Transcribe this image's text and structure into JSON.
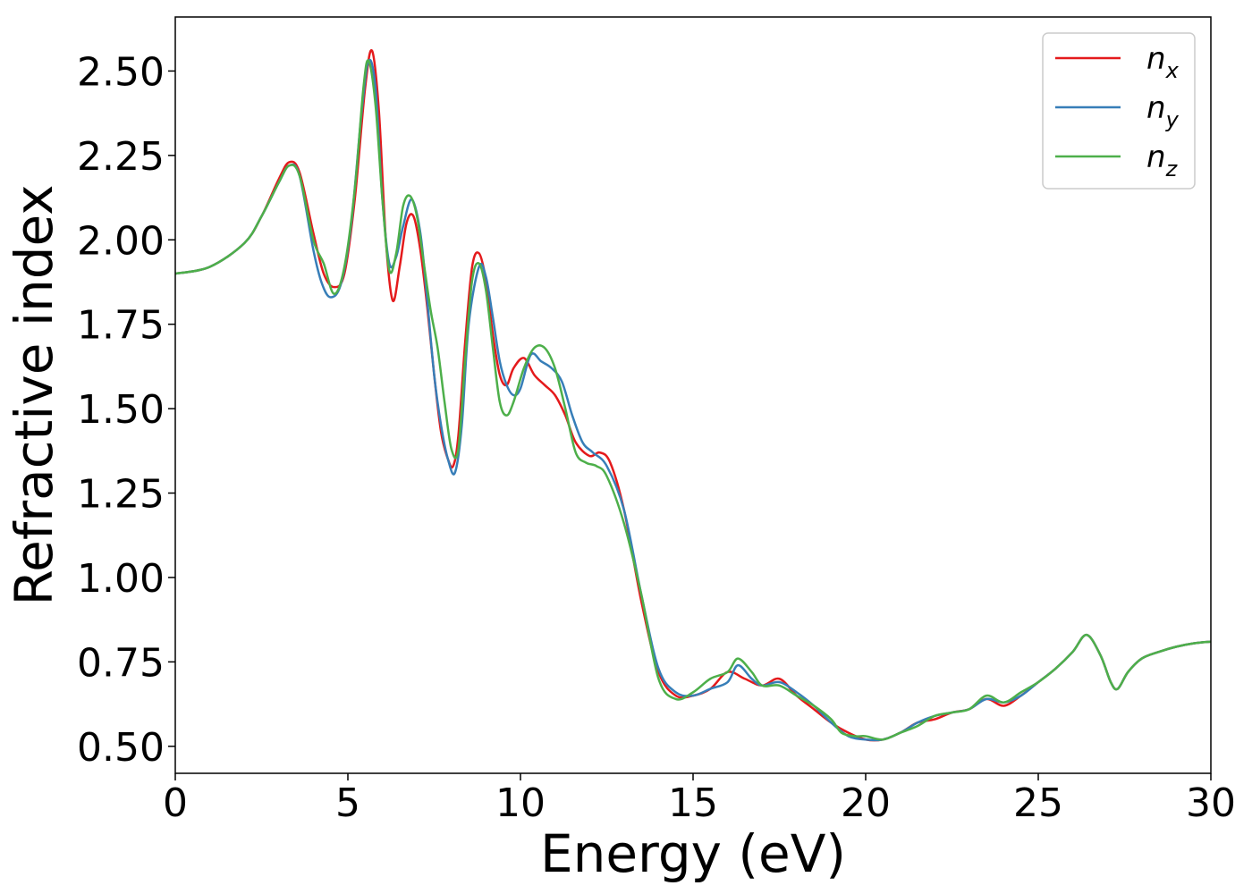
{
  "chart_data": {
    "type": "line",
    "title": "",
    "xlabel": "Energy (eV)",
    "ylabel": "Refractive index",
    "xlim": [
      0,
      30
    ],
    "ylim": [
      0.42,
      2.66
    ],
    "xticks": [
      0,
      5,
      10,
      15,
      20,
      25,
      30
    ],
    "xtick_labels": [
      "0",
      "5",
      "10",
      "15",
      "20",
      "25",
      "30"
    ],
    "yticks": [
      0.5,
      0.75,
      1.0,
      1.25,
      1.5,
      1.75,
      2.0,
      2.25,
      2.5
    ],
    "ytick_labels": [
      "0.50",
      "0.75",
      "1.00",
      "1.25",
      "1.50",
      "1.75",
      "2.00",
      "2.25",
      "2.50"
    ],
    "grid": false,
    "legend_position": "top-right",
    "series": [
      {
        "name": "n",
        "subscript": "x",
        "color": "#e41a1c",
        "x": [
          0,
          1,
          2,
          2.5,
          3,
          3.3,
          3.6,
          4,
          4.3,
          4.6,
          4.9,
          5.2,
          5.5,
          5.7,
          5.9,
          6.1,
          6.3,
          6.5,
          6.7,
          6.9,
          7.1,
          7.3,
          7.5,
          7.7,
          7.9,
          8.05,
          8.2,
          8.4,
          8.6,
          8.8,
          9.0,
          9.2,
          9.4,
          9.6,
          9.8,
          10.1,
          10.4,
          10.7,
          11.0,
          11.3,
          11.6,
          12.0,
          12.3,
          12.6,
          13.0,
          13.5,
          14.0,
          14.5,
          15.0,
          15.5,
          16.0,
          16.5,
          17.0,
          17.5,
          18.0,
          18.5,
          19.0,
          19.5,
          20.0,
          20.5,
          21.0,
          21.5,
          22.0,
          22.5,
          23.0,
          23.5,
          24.0,
          24.5,
          25.0,
          25.5,
          26.0,
          26.4,
          26.8,
          27.1,
          27.3,
          27.6,
          28.0,
          28.5,
          29.0,
          29.5,
          30.0
        ],
        "y": [
          1.9,
          1.92,
          1.99,
          2.07,
          2.18,
          2.23,
          2.2,
          2.02,
          1.9,
          1.86,
          1.9,
          2.12,
          2.45,
          2.56,
          2.38,
          2.0,
          1.82,
          1.92,
          2.05,
          2.07,
          1.97,
          1.8,
          1.6,
          1.43,
          1.35,
          1.33,
          1.42,
          1.7,
          1.92,
          1.96,
          1.88,
          1.72,
          1.6,
          1.57,
          1.62,
          1.65,
          1.6,
          1.57,
          1.54,
          1.48,
          1.4,
          1.36,
          1.37,
          1.34,
          1.2,
          0.93,
          0.72,
          0.65,
          0.65,
          0.67,
          0.72,
          0.7,
          0.68,
          0.7,
          0.65,
          0.61,
          0.57,
          0.54,
          0.52,
          0.52,
          0.54,
          0.57,
          0.58,
          0.6,
          0.61,
          0.64,
          0.62,
          0.65,
          0.69,
          0.73,
          0.78,
          0.83,
          0.77,
          0.69,
          0.67,
          0.72,
          0.76,
          0.78,
          0.795,
          0.805,
          0.81
        ]
      },
      {
        "name": "n",
        "subscript": "y",
        "color": "#377eb8",
        "x": [
          0,
          1,
          2,
          2.5,
          3,
          3.3,
          3.6,
          4,
          4.25,
          4.5,
          4.8,
          5.1,
          5.4,
          5.6,
          5.8,
          6.0,
          6.2,
          6.4,
          6.6,
          6.85,
          7.1,
          7.3,
          7.5,
          7.7,
          7.9,
          8.1,
          8.3,
          8.5,
          8.8,
          9.0,
          9.2,
          9.4,
          9.6,
          9.8,
          10.0,
          10.3,
          10.6,
          10.9,
          11.2,
          11.5,
          11.8,
          12.1,
          12.5,
          13.0,
          13.5,
          14.0,
          14.5,
          15.0,
          15.5,
          16.0,
          16.3,
          16.7,
          17.0,
          17.5,
          18.0,
          18.5,
          19.0,
          19.5,
          20.0,
          20.5,
          21.0,
          21.5,
          22.0,
          22.5,
          23.0,
          23.5,
          24.0,
          24.5,
          25.0,
          25.5,
          26.0,
          26.4,
          26.8,
          27.1,
          27.3,
          27.6,
          28.0,
          28.5,
          29.0,
          29.5,
          30.0
        ],
        "y": [
          1.9,
          1.92,
          1.99,
          2.07,
          2.17,
          2.22,
          2.19,
          1.97,
          1.87,
          1.83,
          1.87,
          2.05,
          2.38,
          2.53,
          2.45,
          2.12,
          1.93,
          1.95,
          2.04,
          2.12,
          2.02,
          1.82,
          1.6,
          1.45,
          1.35,
          1.31,
          1.45,
          1.75,
          1.92,
          1.89,
          1.77,
          1.64,
          1.57,
          1.54,
          1.56,
          1.66,
          1.64,
          1.62,
          1.58,
          1.48,
          1.4,
          1.37,
          1.33,
          1.2,
          0.95,
          0.73,
          0.66,
          0.65,
          0.67,
          0.69,
          0.74,
          0.7,
          0.68,
          0.69,
          0.66,
          0.62,
          0.57,
          0.53,
          0.52,
          0.52,
          0.54,
          0.57,
          0.59,
          0.6,
          0.61,
          0.64,
          0.63,
          0.65,
          0.69,
          0.73,
          0.78,
          0.83,
          0.77,
          0.69,
          0.67,
          0.72,
          0.76,
          0.78,
          0.795,
          0.805,
          0.81
        ]
      },
      {
        "name": "n",
        "subscript": "z",
        "color": "#4daf4a",
        "x": [
          0,
          1,
          2,
          2.5,
          3,
          3.3,
          3.6,
          4,
          4.3,
          4.6,
          4.9,
          5.2,
          5.45,
          5.6,
          5.8,
          6.0,
          6.2,
          6.4,
          6.6,
          6.8,
          7.0,
          7.2,
          7.4,
          7.6,
          7.8,
          8.0,
          8.2,
          8.4,
          8.6,
          8.8,
          9.0,
          9.2,
          9.4,
          9.6,
          9.8,
          10.1,
          10.4,
          10.7,
          11.0,
          11.3,
          11.6,
          11.9,
          12.2,
          12.5,
          13.0,
          13.5,
          14.0,
          14.5,
          15.0,
          15.5,
          16.0,
          16.3,
          16.7,
          17.0,
          17.5,
          18.0,
          18.5,
          19.0,
          19.3,
          19.7,
          20.0,
          20.5,
          21.0,
          21.5,
          22.0,
          22.5,
          23.0,
          23.5,
          24.0,
          24.5,
          25.0,
          25.5,
          26.0,
          26.4,
          26.8,
          27.1,
          27.3,
          27.6,
          28.0,
          28.5,
          29.0,
          29.5,
          30.0
        ],
        "y": [
          1.9,
          1.92,
          1.99,
          2.07,
          2.17,
          2.22,
          2.19,
          2.0,
          1.93,
          1.84,
          1.92,
          2.15,
          2.45,
          2.53,
          2.4,
          2.12,
          1.91,
          1.96,
          2.1,
          2.13,
          2.07,
          1.93,
          1.79,
          1.68,
          1.52,
          1.38,
          1.38,
          1.65,
          1.88,
          1.93,
          1.85,
          1.68,
          1.52,
          1.48,
          1.52,
          1.62,
          1.68,
          1.68,
          1.62,
          1.5,
          1.37,
          1.34,
          1.33,
          1.3,
          1.16,
          0.95,
          0.7,
          0.64,
          0.66,
          0.7,
          0.72,
          0.76,
          0.72,
          0.68,
          0.68,
          0.65,
          0.62,
          0.58,
          0.54,
          0.53,
          0.53,
          0.52,
          0.54,
          0.56,
          0.59,
          0.6,
          0.61,
          0.65,
          0.63,
          0.66,
          0.69,
          0.73,
          0.78,
          0.83,
          0.77,
          0.69,
          0.67,
          0.72,
          0.76,
          0.78,
          0.795,
          0.805,
          0.81
        ]
      }
    ]
  }
}
